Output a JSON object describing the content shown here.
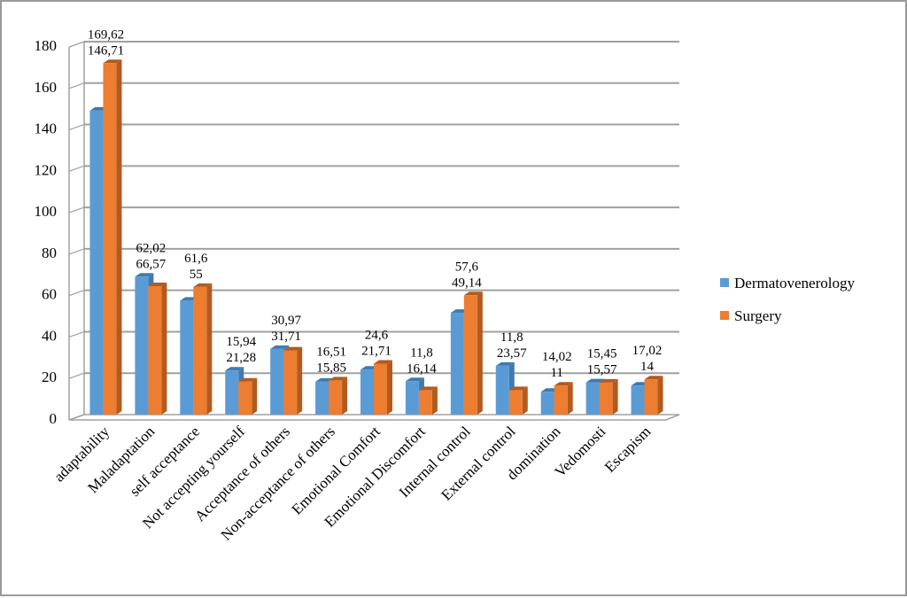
{
  "chart_data": {
    "type": "bar",
    "title": "",
    "xlabel": "",
    "ylabel": "",
    "ylim": [
      0,
      180
    ],
    "yticks": [
      "0",
      "20",
      "40",
      "60",
      "80",
      "100",
      "120",
      "140",
      "160",
      "180"
    ],
    "grid": true,
    "legend_position": "right",
    "categories": [
      "adaptability",
      "Maladaptation",
      "self acceptance",
      "Not accepting yourself",
      "Acceptance of others",
      "Non-acceptance of others",
      "Emotional Comfort",
      "Emotional Discomfort",
      "Internal control",
      "External control",
      "domination",
      "Vedomosti",
      "Escapism"
    ],
    "series": [
      {
        "name": "Dermatovenerology",
        "color": "#5b9bd5",
        "values": [
          146.71,
          66.57,
          55,
          21.28,
          31.71,
          15.85,
          21.71,
          16.14,
          49.14,
          23.57,
          11,
          15.57,
          14
        ],
        "labels": [
          "146,71",
          "66,57",
          "55",
          "21,28",
          "31,71",
          "15,85",
          "21,71",
          "16,14",
          "49,14",
          "23,57",
          "11",
          "15,57",
          "14"
        ]
      },
      {
        "name": "Surgery",
        "color": "#ed7d31",
        "values": [
          169.62,
          62.02,
          61.6,
          15.94,
          30.97,
          16.51,
          24.6,
          11.8,
          57.6,
          11.8,
          14.02,
          15.45,
          17.02
        ],
        "labels": [
          "169,62",
          "62,02",
          "61,6",
          "15,94",
          "30,97",
          "16,51",
          "24,6",
          "11,8",
          "57,6",
          "11,8",
          "14,02",
          "15,45",
          "17,02"
        ]
      }
    ]
  }
}
